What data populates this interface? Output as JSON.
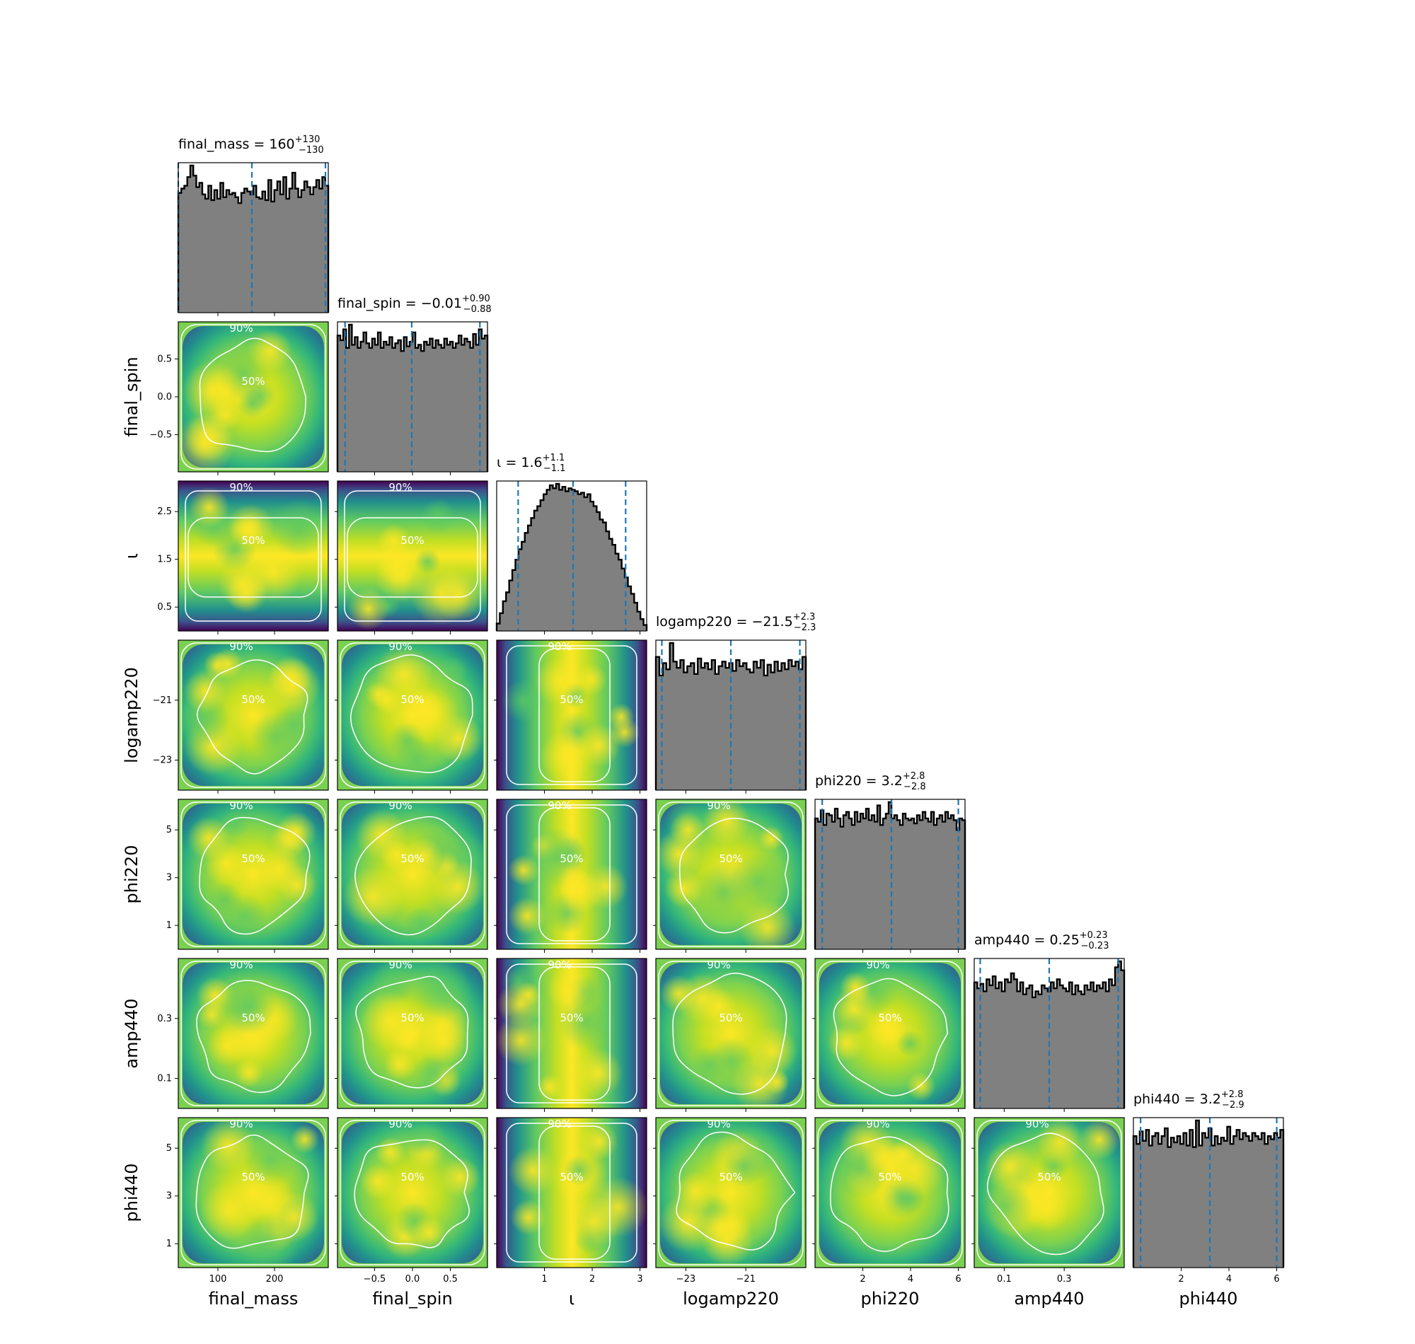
{
  "chart_data": {
    "type": "corner",
    "parameters": [
      {
        "name": "final_mass",
        "label": "final_mass",
        "range": [
          30,
          295
        ],
        "ticks": [
          100,
          200
        ],
        "tick_labels": [
          "100",
          "200"
        ]
      },
      {
        "name": "final_spin",
        "label": "final_spin",
        "range": [
          -0.99,
          0.99
        ],
        "ticks": [
          -0.5,
          0.0,
          0.5
        ],
        "tick_labels": [
          "−0.5",
          "0.0",
          "0.5"
        ]
      },
      {
        "name": "iota",
        "label": "ι",
        "range": [
          0,
          3.14
        ],
        "ticks": [
          0.5,
          1.5,
          2.5
        ],
        "tick_labels": [
          "0.5",
          "1.5",
          "2.5"
        ],
        "x_ticks": [
          1,
          2,
          3
        ],
        "x_tick_labels": [
          "1",
          "2",
          "3"
        ]
      },
      {
        "name": "logamp220",
        "label": "logamp220",
        "range": [
          -24.0,
          -19.0
        ],
        "ticks": [
          -23,
          -21
        ],
        "tick_labels": [
          "−23",
          "−21"
        ]
      },
      {
        "name": "phi220",
        "label": "phi220",
        "range": [
          0,
          6.28
        ],
        "ticks": [
          1,
          3,
          5
        ],
        "tick_labels": [
          "1",
          "3",
          "5"
        ],
        "x_ticks": [
          2,
          4,
          6
        ],
        "x_tick_labels": [
          "2",
          "4",
          "6"
        ]
      },
      {
        "name": "amp440",
        "label": "amp440",
        "range": [
          0.0,
          0.5
        ],
        "ticks": [
          0.1,
          0.3
        ],
        "tick_labels": [
          "0.1",
          "0.3"
        ]
      },
      {
        "name": "phi440",
        "label": "phi440",
        "range": [
          0,
          6.28
        ],
        "ticks": [
          1,
          3,
          5
        ],
        "tick_labels": [
          "1",
          "3",
          "5"
        ],
        "x_ticks": [
          2,
          4,
          6
        ],
        "x_tick_labels": [
          "2",
          "4",
          "6"
        ]
      }
    ],
    "titles": [
      {
        "param": "final_mass",
        "prefix": "final_mass = 160",
        "sup": "+130",
        "sub": "−130",
        "median": 160,
        "lower": 30,
        "upper": 290
      },
      {
        "param": "final_spin",
        "prefix": "final_spin = −0.01",
        "sup": "+0.90",
        "sub": "−0.88",
        "median": -0.01,
        "lower": -0.89,
        "upper": 0.89
      },
      {
        "param": "iota",
        "prefix": "ι = 1.6",
        "sup": "+1.1",
        "sub": "−1.1",
        "median": 1.6,
        "lower": 0.45,
        "upper": 2.7
      },
      {
        "param": "logamp220",
        "prefix": "logamp220 = −21.5",
        "sup": "+2.3",
        "sub": "−2.3",
        "median": -21.5,
        "lower": -23.8,
        "upper": -19.2
      },
      {
        "param": "phi220",
        "prefix": "phi220 = 3.2",
        "sup": "+2.8",
        "sub": "−2.8",
        "median": 3.2,
        "lower": 0.3,
        "upper": 6.0
      },
      {
        "param": "amp440",
        "prefix": "amp440 = 0.25",
        "sup": "+0.23",
        "sub": "−0.23",
        "median": 0.25,
        "lower": 0.02,
        "upper": 0.48
      },
      {
        "param": "phi440",
        "prefix": "phi440 = 3.2",
        "sup": "+2.8",
        "sub": "−2.9",
        "median": 3.2,
        "lower": 0.3,
        "upper": 6.0
      }
    ],
    "histograms": {
      "final_mass": [
        0.83,
        0.86,
        0.88,
        0.94,
        1.02,
        0.95,
        0.87,
        0.9,
        0.82,
        0.79,
        0.88,
        0.78,
        0.85,
        0.79,
        0.9,
        0.8,
        0.85,
        0.82,
        0.83,
        0.8,
        0.76,
        0.83,
        0.86,
        0.84,
        0.82,
        0.88,
        0.8,
        0.79,
        0.84,
        0.78,
        0.92,
        0.77,
        0.85,
        0.91,
        0.82,
        0.94,
        0.79,
        0.86,
        0.97,
        0.86,
        0.8,
        0.85,
        0.91,
        0.87,
        0.82,
        0.87,
        0.92,
        0.86,
        0.94,
        0.88
      ],
      "final_spin": [
        0.88,
        0.85,
        0.92,
        0.8,
        0.95,
        0.82,
        0.87,
        0.8,
        0.84,
        0.9,
        0.83,
        0.8,
        0.86,
        0.82,
        0.9,
        0.8,
        0.84,
        0.82,
        0.87,
        0.8,
        0.83,
        0.85,
        0.78,
        0.87,
        0.81,
        0.84,
        0.9,
        0.8,
        0.82,
        0.78,
        0.84,
        0.82,
        0.86,
        0.8,
        0.85,
        0.82,
        0.8,
        0.86,
        0.82,
        0.84,
        0.8,
        0.83,
        0.88,
        0.82,
        0.86,
        0.84,
        0.8,
        0.89,
        0.82,
        0.92,
        0.86,
        0.88
      ],
      "iota": [
        0.05,
        0.12,
        0.2,
        0.26,
        0.34,
        0.41,
        0.48,
        0.55,
        0.6,
        0.66,
        0.71,
        0.76,
        0.81,
        0.84,
        0.88,
        0.92,
        0.95,
        0.98,
        0.96,
        0.99,
        0.95,
        0.97,
        0.94,
        0.96,
        0.95,
        0.94,
        0.92,
        0.93,
        0.9,
        0.92,
        0.87,
        0.84,
        0.8,
        0.75,
        0.73,
        0.67,
        0.62,
        0.58,
        0.52,
        0.48,
        0.42,
        0.36,
        0.3,
        0.25,
        0.19,
        0.13,
        0.08,
        0.04
      ],
      "logamp220": [
        0.86,
        0.74,
        0.82,
        0.78,
        0.95,
        0.83,
        0.79,
        0.84,
        0.76,
        0.8,
        0.82,
        0.75,
        0.85,
        0.79,
        0.82,
        0.78,
        0.84,
        0.75,
        0.8,
        0.83,
        0.79,
        0.82,
        0.77,
        0.84,
        0.8,
        0.82,
        0.78,
        0.76,
        0.83,
        0.79,
        0.84,
        0.74,
        0.81,
        0.76,
        0.83,
        0.77,
        0.82,
        0.78,
        0.84,
        0.8,
        0.83,
        0.78,
        0.86
      ],
      "phi220": [
        0.8,
        0.78,
        0.85,
        0.76,
        0.83,
        0.82,
        0.78,
        0.86,
        0.8,
        0.75,
        0.82,
        0.84,
        0.8,
        0.76,
        0.84,
        0.78,
        0.83,
        0.8,
        0.86,
        0.79,
        0.82,
        0.78,
        0.88,
        0.76,
        0.8,
        0.83,
        0.9,
        0.8,
        0.82,
        0.79,
        0.76,
        0.83,
        0.8,
        0.79,
        0.8,
        0.77,
        0.82,
        0.79,
        0.84,
        0.8,
        0.78,
        0.84,
        0.76,
        0.8,
        0.82,
        0.78,
        0.84,
        0.8,
        0.82,
        0.79,
        0.73,
        0.8,
        0.79
      ],
      "amp440": [
        0.84,
        0.8,
        0.83,
        0.78,
        0.86,
        0.82,
        0.88,
        0.8,
        0.84,
        0.78,
        0.86,
        0.84,
        0.9,
        0.86,
        0.78,
        0.84,
        0.76,
        0.8,
        0.82,
        0.74,
        0.78,
        0.76,
        0.82,
        0.8,
        0.78,
        0.84,
        0.8,
        0.86,
        0.82,
        0.8,
        0.78,
        0.84,
        0.76,
        0.82,
        0.78,
        0.76,
        0.82,
        0.79,
        0.84,
        0.78,
        0.82,
        0.8,
        0.84,
        0.78,
        0.86,
        0.82,
        0.94,
        0.98,
        0.92
      ],
      "phi440": [
        0.84,
        0.79,
        0.87,
        0.81,
        0.88,
        0.78,
        0.84,
        0.86,
        0.79,
        0.84,
        0.89,
        0.77,
        0.83,
        0.8,
        0.84,
        0.79,
        0.86,
        0.78,
        0.88,
        0.77,
        0.94,
        0.78,
        0.86,
        0.83,
        0.89,
        0.78,
        0.84,
        0.79,
        0.83,
        0.81,
        0.9,
        0.79,
        0.84,
        0.88,
        0.82,
        0.86,
        0.84,
        0.81,
        0.86,
        0.84,
        0.82,
        0.86,
        0.79,
        0.84,
        0.82,
        0.86,
        0.83,
        0.88
      ]
    },
    "contour_levels": [
      "50%",
      "90%"
    ],
    "colormap": "viridis",
    "quantile_line_color": "#1f77b4",
    "histogram_fill": "#808080"
  }
}
